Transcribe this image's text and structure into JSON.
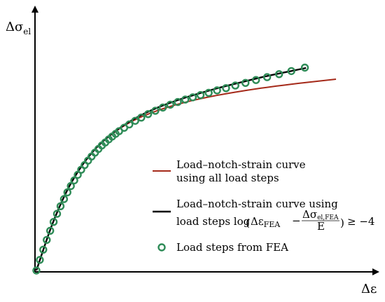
{
  "chart_data": {
    "type": "line",
    "title": "",
    "xlabel": "Δε",
    "ylabel": "Δσ",
    "ylabel_sub": "el",
    "xlim": [
      0,
      1
    ],
    "ylim": [
      0,
      1
    ],
    "grid": false,
    "legend_position": "bottom-right",
    "series": [
      {
        "name": "Load–notch-strain curve using all load steps",
        "kind": "line",
        "color": "#a52a1a",
        "x": [
          0,
          0.05,
          0.1,
          0.15,
          0.2,
          0.25,
          0.3,
          0.35,
          0.4,
          0.45,
          0.5,
          0.55,
          0.6,
          0.65,
          0.7,
          0.75,
          0.8,
          0.85,
          0.9,
          0.95,
          1.0
        ],
        "y": [
          0,
          0.215,
          0.385,
          0.51,
          0.602,
          0.667,
          0.716,
          0.753,
          0.782,
          0.806,
          0.826,
          0.843,
          0.858,
          0.871,
          0.883,
          0.894,
          0.904,
          0.913,
          0.922,
          0.93,
          0.938
        ]
      },
      {
        "name": "Load–notch-strain curve using load steps",
        "kind": "line",
        "color": "#000000",
        "x": [
          0,
          0.05,
          0.1,
          0.15,
          0.2,
          0.25,
          0.3,
          0.35,
          0.4,
          0.45,
          0.5,
          0.55,
          0.6,
          0.65,
          0.7,
          0.75,
          0.8,
          0.85,
          0.9
        ],
        "y": [
          0,
          0.215,
          0.385,
          0.51,
          0.602,
          0.668,
          0.72,
          0.762,
          0.796,
          0.824,
          0.849,
          0.871,
          0.892,
          0.911,
          0.929,
          0.947,
          0.963,
          0.978,
          0.993
        ]
      },
      {
        "name": "Load steps from FEA",
        "kind": "scatter",
        "color": "#2e8b57",
        "x": [
          0.0,
          0.0115,
          0.023,
          0.0345,
          0.046,
          0.0575,
          0.069,
          0.0805,
          0.092,
          0.1035,
          0.115,
          0.1265,
          0.138,
          0.1495,
          0.161,
          0.1725,
          0.184,
          0.1955,
          0.207,
          0.2185,
          0.23,
          0.2415,
          0.253,
          0.2645,
          0.276,
          0.293,
          0.31,
          0.33,
          0.35,
          0.373,
          0.397,
          0.422,
          0.447,
          0.472,
          0.497,
          0.522,
          0.548,
          0.575,
          0.603,
          0.633,
          0.664,
          0.698,
          0.733,
          0.77,
          0.81,
          0.851,
          0.896
        ],
        "y": [
          0.0,
          0.052,
          0.102,
          0.15,
          0.195,
          0.238,
          0.278,
          0.315,
          0.35,
          0.383,
          0.414,
          0.442,
          0.469,
          0.494,
          0.517,
          0.539,
          0.559,
          0.578,
          0.596,
          0.613,
          0.628,
          0.643,
          0.657,
          0.67,
          0.683,
          0.7,
          0.716,
          0.734,
          0.75,
          0.767,
          0.783,
          0.799,
          0.813,
          0.826,
          0.838,
          0.849,
          0.86,
          0.871,
          0.883,
          0.894,
          0.907,
          0.92,
          0.934,
          0.948,
          0.963,
          0.978,
          0.995
        ]
      }
    ],
    "legend": [
      {
        "line1": "Load–notch-strain curve",
        "line2": "using all load steps"
      },
      {
        "line1": "Load–notch-strain curve using",
        "line2_prefix": "load steps log",
        "eps": "Δε",
        "eps_sub": "FEA",
        "minus": "−",
        "num": "Δσ",
        "num_sub": "el,FEA",
        "den": "E",
        "condition": "≥ −4"
      },
      {
        "line1": "Load steps from FEA"
      }
    ]
  }
}
